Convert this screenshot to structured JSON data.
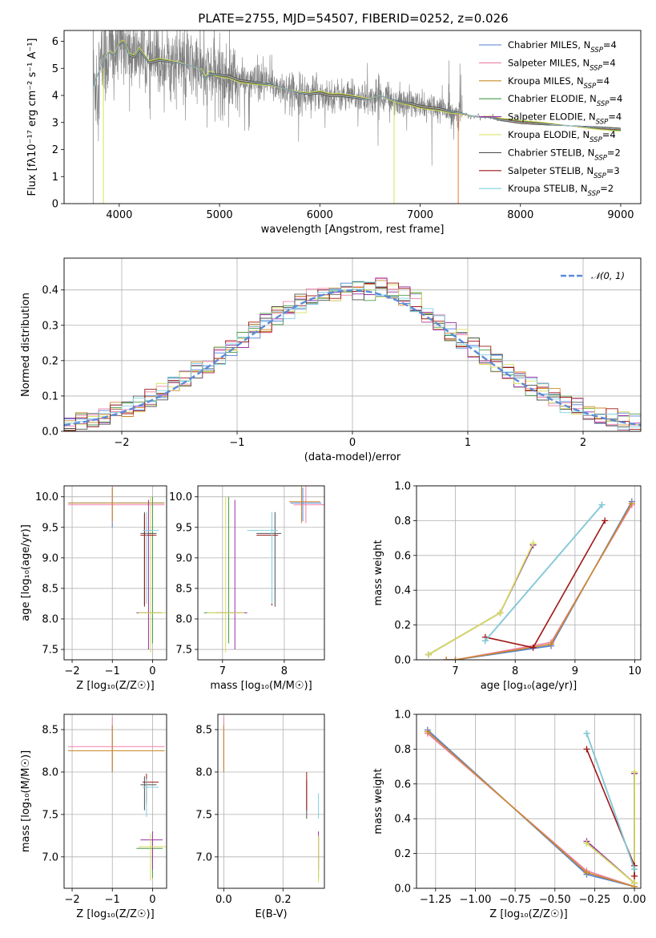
{
  "title": "PLATE=2755, MJD=54507, FIBERID=0252, z=0.026",
  "colors": {
    "Chabrier MILES": "#4f7fd6",
    "Salpeter MILES": "#f080a8",
    "Kroupa MILES": "#c98a2a",
    "Chabrier ELODIE": "#4a9a4a",
    "Salpeter ELODIE": "#9a2fa5",
    "Kroupa ELODIE": "#d8df5a",
    "Chabrier STELIB": "#505050",
    "Salpeter STELIB": "#a01515",
    "Kroupa STELIB": "#7fd0e0",
    "data": "#808080",
    "gaussian": "#5b8bd8",
    "orange": "#f07a30"
  },
  "legend": [
    {
      "key": "Chabrier MILES",
      "label": "Chabrier MILES, N",
      "sub": "SSP",
      "suffix": "=4"
    },
    {
      "key": "Salpeter MILES",
      "label": "Salpeter MILES, N",
      "sub": "SSP",
      "suffix": "=4"
    },
    {
      "key": "Kroupa MILES",
      "label": "Kroupa MILES, N",
      "sub": "SSP",
      "suffix": "=4"
    },
    {
      "key": "Chabrier ELODIE",
      "label": "Chabrier ELODIE, N",
      "sub": "SSP",
      "suffix": "=4"
    },
    {
      "key": "Salpeter ELODIE",
      "label": "Salpeter ELODIE, N",
      "sub": "SSP",
      "suffix": "=4"
    },
    {
      "key": "Kroupa ELODIE",
      "label": "Kroupa ELODIE, N",
      "sub": "SSP",
      "suffix": "=4"
    },
    {
      "key": "Chabrier STELIB",
      "label": "Chabrier STELIB, N",
      "sub": "SSP",
      "suffix": "=2"
    },
    {
      "key": "Salpeter STELIB",
      "label": "Salpeter STELIB, N",
      "sub": "SSP",
      "suffix": "=3"
    },
    {
      "key": "Kroupa STELIB",
      "label": "Kroupa STELIB, N",
      "sub": "SSP",
      "suffix": "=2"
    }
  ],
  "chart_data": [
    {
      "type": "line",
      "xlabel": "wavelength [Angstrom, rest frame]",
      "ylabel": "Flux [fλ10⁻¹⁷ erg cm⁻² s⁻¹ A⁻¹]",
      "xlim": [
        3450,
        9200
      ],
      "ylim": [
        0,
        6.4
      ],
      "xticks": [
        4000,
        5000,
        6000,
        7000,
        8000,
        9000
      ],
      "yticks": [
        0,
        1,
        2,
        3,
        4,
        5,
        6
      ],
      "model_continuum": {
        "x": [
          3740,
          3800,
          3850,
          3900,
          3950,
          4000,
          4050,
          4100,
          4150,
          4200,
          4300,
          4400,
          4500,
          4600,
          4700,
          4800,
          4860,
          4900,
          5000,
          5100,
          5200,
          5300,
          5400,
          5500,
          5600,
          5700,
          5800,
          5900,
          6000,
          6100,
          6200,
          6300,
          6400,
          6500,
          6600,
          6700,
          6800,
          6900,
          7000,
          7100,
          7200,
          7300,
          7400,
          7500,
          7600,
          7700,
          7800,
          7900,
          8000,
          8200,
          8400,
          8600,
          8800,
          9000
        ],
        "y": [
          4.3,
          4.9,
          5.4,
          5.6,
          5.5,
          5.9,
          6.0,
          5.5,
          5.4,
          5.7,
          5.2,
          5.3,
          5.25,
          5.2,
          5.1,
          5.0,
          4.6,
          4.8,
          4.75,
          4.7,
          4.55,
          4.5,
          4.45,
          4.4,
          4.3,
          4.2,
          4.1,
          4.05,
          4.1,
          4.0,
          4.0,
          3.95,
          3.9,
          3.85,
          4.0,
          3.85,
          3.75,
          3.7,
          3.6,
          3.55,
          3.5,
          3.4,
          3.35,
          3.25,
          3.2,
          3.2,
          3.1,
          3.05,
          3.0,
          2.95,
          2.9,
          2.85,
          2.8,
          2.75
        ]
      }
    },
    {
      "type": "bar",
      "title": "",
      "xlabel": "(data-model)/error",
      "ylabel": "Normed distribution",
      "xlim": [
        -2.5,
        2.5
      ],
      "ylim": [
        0,
        0.49
      ],
      "xticks": [
        -2,
        -1,
        0,
        1,
        2
      ],
      "yticks": [
        0,
        0.1,
        0.2,
        0.3,
        0.4
      ],
      "gaussian_label": "𝒩(0, 1)",
      "bin_width": 0.1
    },
    {
      "type": "scatter",
      "xlabel": "Z [log₁₀(Z/Z☉)]",
      "ylabel": "age  [log₁₀(age/yr)]",
      "xlim": [
        -2.2,
        0.35
      ],
      "ylim": [
        7.33,
        10.18
      ],
      "xticks": [
        -2,
        -1,
        0
      ],
      "yticks": [
        7.5,
        8.0,
        8.5,
        9.0,
        9.5,
        10.0
      ]
    },
    {
      "type": "scatter",
      "xlabel": "mass [log₁₀(M/M☉)]",
      "ylabel": "",
      "xlim": [
        6.6,
        8.65
      ],
      "ylim": [
        7.33,
        10.18
      ],
      "xticks": [
        7,
        8
      ],
      "yticks": [
        7.5,
        8.0,
        8.5,
        9.0,
        9.5,
        10.0
      ]
    },
    {
      "type": "line",
      "xlabel": "age  [log₁₀(age/yr)]",
      "ylabel": "mass weight",
      "xlim": [
        6.35,
        10.1
      ],
      "ylim": [
        0,
        1
      ],
      "xticks": [
        7,
        8,
        9,
        10
      ],
      "yticks": [
        0,
        0.2,
        0.4,
        0.6,
        0.8,
        1.0
      ],
      "series": [
        {
          "key": "Chabrier MILES",
          "x": [
            6.85,
            7.0,
            8.6,
            9.95
          ],
          "y": [
            0.0,
            0.0,
            0.08,
            0.91
          ]
        },
        {
          "key": "Salpeter MILES",
          "x": [
            6.85,
            7.0,
            8.6,
            9.95
          ],
          "y": [
            0.0,
            0.0,
            0.1,
            0.89
          ]
        },
        {
          "key": "Kroupa MILES",
          "x": [
            6.85,
            7.0,
            8.6,
            9.95
          ],
          "y": [
            0.0,
            0.0,
            0.09,
            0.9
          ]
        },
        {
          "key": "Chabrier ELODIE",
          "x": [
            6.55,
            7.75,
            8.3
          ],
          "y": [
            0.03,
            0.27,
            0.66
          ]
        },
        {
          "key": "Salpeter ELODIE",
          "x": [
            6.55,
            7.75,
            8.3
          ],
          "y": [
            0.03,
            0.27,
            0.66
          ]
        },
        {
          "key": "Kroupa ELODIE",
          "x": [
            6.55,
            7.75,
            8.3
          ],
          "y": [
            0.03,
            0.27,
            0.67
          ]
        },
        {
          "key": "Chabrier STELIB",
          "x": [
            7.5,
            9.45
          ],
          "y": [
            0.11,
            0.89
          ]
        },
        {
          "key": "Salpeter STELIB",
          "x": [
            7.5,
            8.3,
            9.5
          ],
          "y": [
            0.13,
            0.07,
            0.8
          ]
        },
        {
          "key": "Kroupa STELIB",
          "x": [
            7.5,
            9.45
          ],
          "y": [
            0.11,
            0.89
          ]
        }
      ]
    },
    {
      "type": "scatter",
      "xlabel": "Z [log₁₀(Z/Z☉)]",
      "ylabel": "mass [log₁₀(M/M☉)]",
      "xlim": [
        -2.2,
        0.35
      ],
      "ylim": [
        6.63,
        8.68
      ],
      "xticks": [
        -2,
        -1,
        0
      ],
      "yticks": [
        7.0,
        7.5,
        8.0,
        8.5
      ]
    },
    {
      "type": "scatter",
      "xlabel": "E(B-V)",
      "ylabel": "",
      "xlim": [
        -0.02,
        0.34
      ],
      "ylim": [
        6.63,
        8.68
      ],
      "xticks": [
        0.0,
        0.2
      ],
      "yticks": [
        7.0,
        7.5,
        8.0,
        8.5
      ]
    },
    {
      "type": "line",
      "xlabel": "Z [log₁₀(Z/Z☉)]",
      "ylabel": "mass weight",
      "xlim": [
        -1.37,
        0.04
      ],
      "ylim": [
        0,
        1
      ],
      "xticks": [
        -1.25,
        -1.0,
        -0.75,
        -0.5,
        -0.25,
        0.0
      ],
      "yticks": [
        0,
        0.2,
        0.4,
        0.6,
        0.8,
        1.0
      ],
      "series": [
        {
          "key": "Chabrier MILES",
          "x": [
            -1.3,
            -0.3,
            0.0
          ],
          "y": [
            0.91,
            0.08,
            0.01
          ]
        },
        {
          "key": "Salpeter MILES",
          "x": [
            -1.3,
            -0.3,
            0.0
          ],
          "y": [
            0.89,
            0.1,
            0.01
          ]
        },
        {
          "key": "Kroupa MILES",
          "x": [
            -1.3,
            -0.3,
            0.0
          ],
          "y": [
            0.9,
            0.09,
            0.01
          ]
        },
        {
          "key": "Chabrier ELODIE",
          "x": [
            -0.3,
            0.0,
            0.0
          ],
          "y": [
            0.26,
            0.03,
            0.66
          ]
        },
        {
          "key": "Salpeter ELODIE",
          "x": [
            -0.3,
            0.0,
            0.0
          ],
          "y": [
            0.27,
            0.03,
            0.66
          ]
        },
        {
          "key": "Kroupa ELODIE",
          "x": [
            -0.3,
            0.0,
            0.0
          ],
          "y": [
            0.26,
            0.03,
            0.67
          ]
        },
        {
          "key": "Chabrier STELIB",
          "x": [
            -0.3,
            0.0
          ],
          "y": [
            0.89,
            0.11
          ]
        },
        {
          "key": "Salpeter STELIB",
          "x": [
            -0.3,
            0.0,
            0.0
          ],
          "y": [
            0.8,
            0.13,
            0.07
          ]
        },
        {
          "key": "Kroupa STELIB",
          "x": [
            -0.3,
            0.0
          ],
          "y": [
            0.89,
            0.11
          ]
        }
      ]
    }
  ]
}
